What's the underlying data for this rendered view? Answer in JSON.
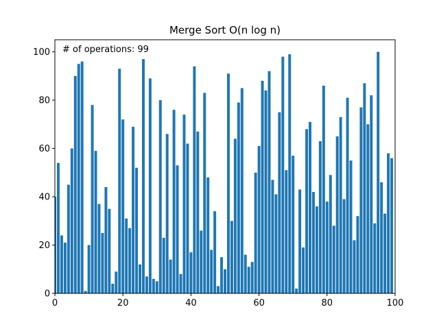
{
  "chart_data": {
    "type": "bar",
    "title": "Merge Sort O(n log n)",
    "annotation": "# of operations: 99",
    "xlabel": "",
    "ylabel": "",
    "xlim": [
      0,
      100
    ],
    "ylim": [
      0,
      105
    ],
    "xticks": [
      0,
      20,
      40,
      60,
      80,
      100
    ],
    "yticks": [
      0,
      20,
      40,
      60,
      80,
      100
    ],
    "grid": false,
    "bar_color": "#1f77b4",
    "values": [
      40,
      54,
      24,
      21,
      45,
      60,
      90,
      95,
      96,
      1,
      20,
      78,
      59,
      37,
      25,
      44,
      35,
      4,
      9,
      93,
      72,
      31,
      27,
      69,
      52,
      12,
      97,
      7,
      89,
      6,
      5,
      80,
      23,
      66,
      14,
      76,
      53,
      8,
      74,
      62,
      17,
      94,
      67,
      26,
      83,
      48,
      18,
      34,
      3,
      15,
      10,
      91,
      30,
      64,
      79,
      85,
      16,
      11,
      13,
      50,
      61,
      88,
      84,
      92,
      47,
      41,
      75,
      98,
      51,
      99,
      57,
      2,
      43,
      19,
      68,
      71,
      42,
      36,
      63,
      86,
      38,
      49,
      28,
      65,
      73,
      39,
      81,
      55,
      22,
      32,
      77,
      87,
      70,
      82,
      29,
      100,
      46,
      33,
      58,
      56
    ]
  }
}
